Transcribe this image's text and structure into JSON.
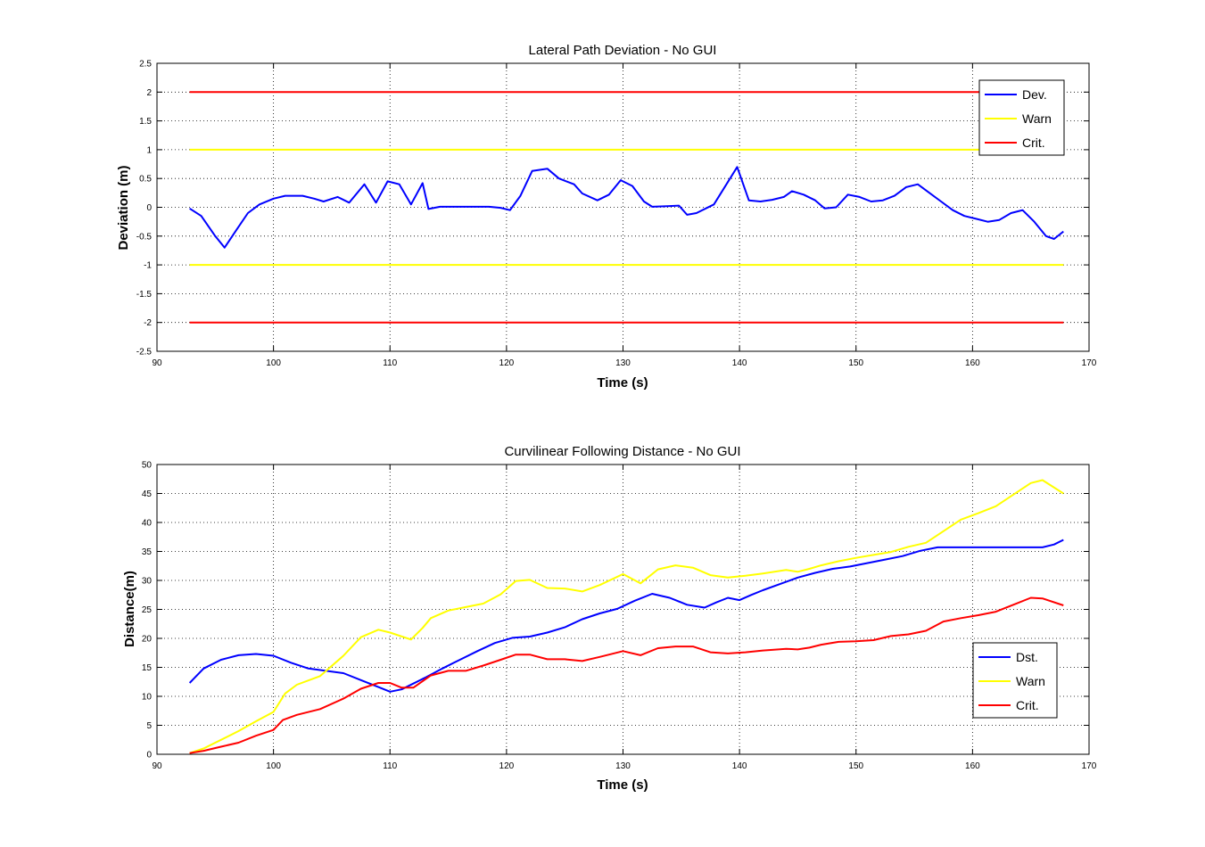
{
  "colors": {
    "dev": "#0000ff",
    "warn": "#ffff00",
    "crit": "#ff0000"
  },
  "chart_data": [
    {
      "type": "line",
      "title": "Lateral Path Deviation - No GUI",
      "xlabel": "Time (s)",
      "ylabel": "Deviation (m)",
      "xlim": [
        90,
        170
      ],
      "ylim": [
        -2.5,
        2.5
      ],
      "xticks": [
        "90",
        "100",
        "110",
        "120",
        "130",
        "140",
        "150",
        "160",
        "170"
      ],
      "yticks": [
        "-2.5",
        "-2",
        "-1.5",
        "-1",
        "-0.5",
        "0",
        "0.5",
        "1",
        "1.5",
        "2",
        "2.5"
      ],
      "grid": true,
      "legend_position": "top-right",
      "series": [
        {
          "name": "Dev.",
          "color": "dev",
          "x": [
            92.8,
            93.8,
            95.0,
            95.8,
            96.8,
            97.8,
            98.8,
            100.0,
            101.0,
            102.5,
            103.5,
            104.3,
            105.5,
            106.5,
            107.8,
            108.8,
            109.8,
            110.8,
            111.8,
            112.8,
            113.3,
            114.3,
            115.5,
            117.0,
            118.5,
            119.5,
            120.3,
            121.2,
            122.2,
            123.5,
            124.5,
            125.8,
            126.5,
            127.8,
            128.8,
            129.8,
            130.8,
            131.8,
            132.5,
            133.8,
            134.8,
            135.5,
            136.3,
            137.8,
            139.8,
            140.8,
            141.8,
            142.8,
            143.8,
            144.5,
            145.5,
            146.5,
            147.3,
            148.3,
            149.3,
            150.3,
            151.3,
            152.3,
            153.3,
            154.3,
            155.3,
            156.3,
            157.3,
            158.3,
            159.3,
            160.3,
            161.3,
            162.3,
            163.3,
            164.3,
            165.3,
            166.3,
            167.0,
            167.8
          ],
          "y": [
            -0.02,
            -0.15,
            -0.5,
            -0.7,
            -0.4,
            -0.1,
            0.05,
            0.15,
            0.2,
            0.2,
            0.15,
            0.1,
            0.18,
            0.08,
            0.4,
            0.08,
            0.45,
            0.4,
            0.05,
            0.42,
            -0.03,
            0.01,
            0.01,
            0.01,
            0.01,
            -0.01,
            -0.05,
            0.2,
            0.63,
            0.67,
            0.5,
            0.4,
            0.24,
            0.12,
            0.22,
            0.47,
            0.37,
            0.1,
            0.01,
            0.02,
            0.03,
            -0.13,
            -0.1,
            0.05,
            0.7,
            0.12,
            0.1,
            0.13,
            0.18,
            0.28,
            0.22,
            0.12,
            -0.02,
            0.0,
            0.22,
            0.18,
            0.1,
            0.12,
            0.2,
            0.35,
            0.4,
            0.25,
            0.1,
            -0.05,
            -0.15,
            -0.2,
            -0.25,
            -0.22,
            -0.1,
            -0.05,
            -0.25,
            -0.5,
            -0.55,
            -0.42
          ]
        },
        {
          "name": "Warn",
          "color": "warn",
          "x": [
            92.8,
            167.8
          ],
          "y": [
            1,
            1
          ]
        },
        {
          "name": "Crit.",
          "color": "crit",
          "x": [
            92.8,
            167.8
          ],
          "y": [
            2,
            2
          ]
        },
        {
          "name": "",
          "color": "warn",
          "x": [
            92.8,
            167.8
          ],
          "y": [
            -1,
            -1
          ]
        },
        {
          "name": "",
          "color": "crit",
          "x": [
            92.8,
            167.8
          ],
          "y": [
            -2,
            -2
          ]
        }
      ]
    },
    {
      "type": "line",
      "title": "Curvilinear Following Distance - No GUI",
      "xlabel": "Time (s)",
      "ylabel": "Distance(m)",
      "xlim": [
        90,
        170
      ],
      "ylim": [
        0,
        50
      ],
      "xticks": [
        "90",
        "100",
        "110",
        "120",
        "130",
        "140",
        "150",
        "160",
        "170"
      ],
      "yticks": [
        "0",
        "5",
        "10",
        "15",
        "20",
        "25",
        "30",
        "35",
        "40",
        "45",
        "50"
      ],
      "grid": true,
      "legend_position": "bottom-right",
      "series": [
        {
          "name": "Dst.",
          "color": "dev",
          "x": [
            92.8,
            94.0,
            95.5,
            97.0,
            98.5,
            100.0,
            101.5,
            103.0,
            104.5,
            106.0,
            107.5,
            109.0,
            110.0,
            111.0,
            112.0,
            113.0,
            114.5,
            116.0,
            117.5,
            119.0,
            120.5,
            122.0,
            123.5,
            125.0,
            126.5,
            128.0,
            129.5,
            131.0,
            132.5,
            134.0,
            135.5,
            137.0,
            138.0,
            139.0,
            140.0,
            141.0,
            142.0,
            143.5,
            145.0,
            146.5,
            148.0,
            149.5,
            151.0,
            152.5,
            154.0,
            155.5,
            157.0,
            158.5,
            160.0,
            161.5,
            163.0,
            164.5,
            166.0,
            167.0,
            167.8
          ],
          "y": [
            12.3,
            14.8,
            16.3,
            17.1,
            17.3,
            17.0,
            15.8,
            14.8,
            14.4,
            14.0,
            12.8,
            11.6,
            10.8,
            11.2,
            12.2,
            13.2,
            14.8,
            16.3,
            17.8,
            19.2,
            20.1,
            20.3,
            21.0,
            21.9,
            23.3,
            24.3,
            25.1,
            26.5,
            27.7,
            27.0,
            25.8,
            25.3,
            26.2,
            27.0,
            26.6,
            27.5,
            28.3,
            29.4,
            30.5,
            31.3,
            32.0,
            32.4,
            33.0,
            33.6,
            34.2,
            35.1,
            35.7,
            35.7,
            35.7,
            35.7,
            35.7,
            35.7,
            35.7,
            36.2,
            37.0
          ]
        },
        {
          "name": "Warn",
          "color": "warn",
          "x": [
            92.8,
            94.0,
            95.5,
            97.0,
            98.5,
            100.0,
            101.0,
            102.0,
            104.0,
            106.0,
            107.5,
            109.0,
            110.0,
            111.8,
            112.8,
            113.5,
            115.0,
            116.5,
            118.0,
            119.5,
            120.8,
            122.0,
            123.5,
            125.0,
            126.5,
            128.0,
            130.0,
            131.5,
            133.0,
            134.5,
            136.0,
            137.5,
            139.0,
            140.5,
            142.0,
            144.0,
            145.0,
            146.0,
            147.0,
            148.5,
            150.0,
            151.5,
            153.0,
            154.5,
            156.0,
            157.5,
            159.0,
            160.5,
            162.0,
            163.5,
            165.0,
            166.0,
            167.8
          ],
          "y": [
            0.2,
            1.0,
            2.5,
            4.0,
            5.7,
            7.3,
            10.5,
            12.0,
            13.5,
            17.0,
            20.2,
            21.5,
            21.0,
            19.8,
            21.8,
            23.5,
            24.8,
            25.4,
            26.0,
            27.6,
            29.9,
            30.1,
            28.7,
            28.6,
            28.1,
            29.2,
            31.1,
            29.5,
            31.9,
            32.6,
            32.2,
            30.9,
            30.5,
            30.8,
            31.2,
            31.8,
            31.5,
            32.0,
            32.6,
            33.3,
            33.9,
            34.4,
            34.9,
            35.8,
            36.5,
            38.5,
            40.5,
            41.6,
            42.8,
            44.8,
            46.8,
            47.3,
            45.0
          ]
        },
        {
          "name": "Crit.",
          "color": "crit",
          "x": [
            92.8,
            94.0,
            95.5,
            97.0,
            98.5,
            100.0,
            100.8,
            102.0,
            104.0,
            106.0,
            107.5,
            109.0,
            110.0,
            111.0,
            112.0,
            113.5,
            115.0,
            116.5,
            118.0,
            119.5,
            120.8,
            122.0,
            123.5,
            125.0,
            126.5,
            128.0,
            130.0,
            131.5,
            133.0,
            134.5,
            136.0,
            137.5,
            139.0,
            140.5,
            142.0,
            144.0,
            145.0,
            146.0,
            147.0,
            148.5,
            150.0,
            151.5,
            153.0,
            154.5,
            156.0,
            157.5,
            159.0,
            160.5,
            162.0,
            163.5,
            165.0,
            166.0,
            167.8
          ],
          "y": [
            0.2,
            0.6,
            1.3,
            2.0,
            3.2,
            4.2,
            5.9,
            6.8,
            7.8,
            9.6,
            11.3,
            12.3,
            12.3,
            11.5,
            11.5,
            13.6,
            14.4,
            14.4,
            15.3,
            16.3,
            17.2,
            17.2,
            16.4,
            16.4,
            16.1,
            16.8,
            17.8,
            17.1,
            18.3,
            18.6,
            18.6,
            17.6,
            17.4,
            17.6,
            17.9,
            18.2,
            18.1,
            18.4,
            18.9,
            19.4,
            19.5,
            19.7,
            20.4,
            20.7,
            21.3,
            22.9,
            23.5,
            24.0,
            24.6,
            25.8,
            27.0,
            26.9,
            25.7
          ]
        }
      ]
    }
  ]
}
